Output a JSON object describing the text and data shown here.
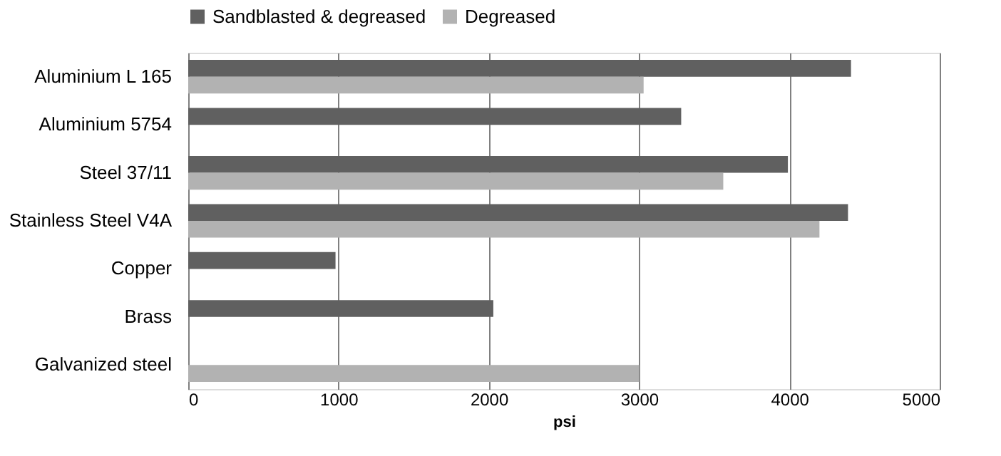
{
  "chart_data": {
    "type": "bar",
    "orientation": "horizontal",
    "xlabel": "psi",
    "categories": [
      "Aluminium L 165",
      "Aluminium 5754",
      "Steel 37/11",
      "Stainless Steel V4A",
      "Copper",
      "Brass",
      "Galvanized steel"
    ],
    "series": [
      {
        "name": "Sandblasted & degreased",
        "color": "#606060",
        "values": [
          4410,
          3280,
          3990,
          4390,
          980,
          2030,
          null
        ]
      },
      {
        "name": "Degreased",
        "color": "#b2b2b2",
        "values": [
          3030,
          null,
          3560,
          4200,
          null,
          null,
          3000
        ]
      }
    ],
    "xlim": [
      0,
      5000
    ],
    "xticks": [
      0,
      1000,
      2000,
      3000,
      4000,
      5000
    ],
    "grid": "x",
    "legend": "top"
  }
}
